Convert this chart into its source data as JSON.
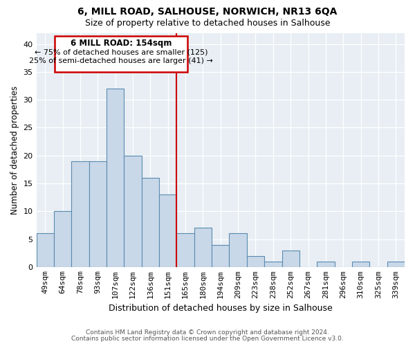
{
  "title": "6, MILL ROAD, SALHOUSE, NORWICH, NR13 6QA",
  "subtitle": "Size of property relative to detached houses in Salhouse",
  "xlabel": "Distribution of detached houses by size in Salhouse",
  "ylabel": "Number of detached properties",
  "categories": [
    "49sqm",
    "64sqm",
    "78sqm",
    "93sqm",
    "107sqm",
    "122sqm",
    "136sqm",
    "151sqm",
    "165sqm",
    "180sqm",
    "194sqm",
    "209sqm",
    "223sqm",
    "238sqm",
    "252sqm",
    "267sqm",
    "281sqm",
    "296sqm",
    "310sqm",
    "325sqm",
    "339sqm"
  ],
  "values": [
    6,
    10,
    19,
    19,
    32,
    20,
    16,
    13,
    6,
    7,
    4,
    6,
    2,
    1,
    3,
    0,
    1,
    0,
    1,
    0,
    1
  ],
  "bar_color": "#c8d8e8",
  "bar_edge_color": "#5a8ab0",
  "vline_color": "#cc0000",
  "annotation_title": "6 MILL ROAD: 154sqm",
  "annotation_line1": "← 75% of detached houses are smaller (125)",
  "annotation_line2": "25% of semi-detached houses are larger (41) →",
  "box_edge_color": "#cc0000",
  "ylim": [
    0,
    42
  ],
  "yticks": [
    0,
    5,
    10,
    15,
    20,
    25,
    30,
    35,
    40
  ],
  "footer1": "Contains HM Land Registry data © Crown copyright and database right 2024.",
  "footer2": "Contains public sector information licensed under the Open Government Licence v3.0.",
  "background_color": "#ffffff",
  "plot_bg_color": "#e8eef4",
  "grid_color": "#ffffff"
}
